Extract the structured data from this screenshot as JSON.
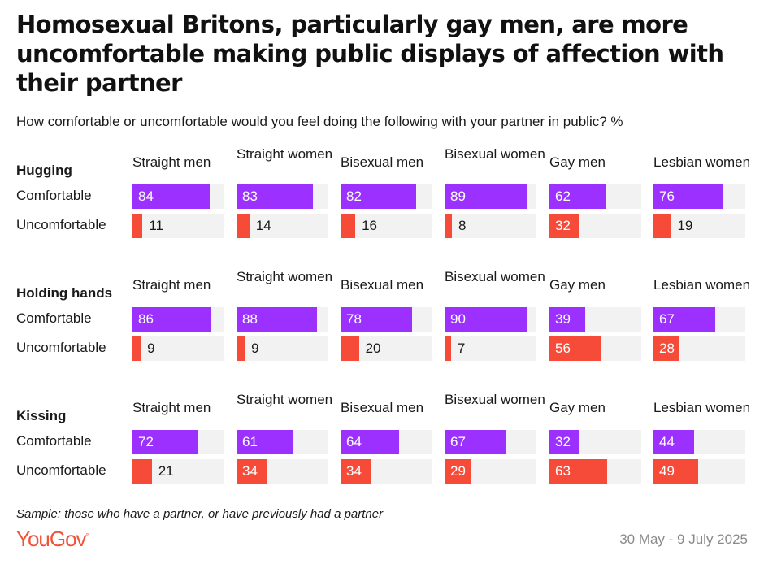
{
  "title": "Homosexual Britons, particularly gay men, are more uncomfortable making public displays of affection with their partner",
  "subtitle": "How comfortable or uncomfortable would you feel doing the following with your partner in public? %",
  "footer": {
    "note": "Sample: those who have a partner, or have previously had a partner",
    "logo": "YouGov",
    "date": "30 May - 9 July 2025"
  },
  "colors": {
    "comfortable": "#9b30ff",
    "uncomfortable": "#f74b39",
    "track": "#f2f2f2",
    "logo": "#f0533c"
  },
  "chart_data": {
    "type": "bar",
    "categories": [
      "Straight men",
      "Straight women",
      "Bisexual men",
      "Bisexual women",
      "Gay men",
      "Lesbian women"
    ],
    "row_labels": [
      "Comfortable",
      "Uncomfortable"
    ],
    "xlim": [
      0,
      100
    ],
    "groups": [
      {
        "name": "Hugging",
        "series": [
          {
            "name": "Comfortable",
            "values": [
              84,
              83,
              82,
              89,
              62,
              76
            ]
          },
          {
            "name": "Uncomfortable",
            "values": [
              11,
              14,
              16,
              8,
              32,
              19
            ]
          }
        ]
      },
      {
        "name": "Holding hands",
        "series": [
          {
            "name": "Comfortable",
            "values": [
              86,
              88,
              78,
              90,
              39,
              67
            ]
          },
          {
            "name": "Uncomfortable",
            "values": [
              9,
              9,
              20,
              7,
              56,
              28
            ]
          }
        ]
      },
      {
        "name": "Kissing",
        "series": [
          {
            "name": "Comfortable",
            "values": [
              72,
              61,
              64,
              67,
              32,
              44
            ]
          },
          {
            "name": "Uncomfortable",
            "values": [
              21,
              34,
              34,
              29,
              63,
              49
            ]
          }
        ]
      }
    ]
  }
}
